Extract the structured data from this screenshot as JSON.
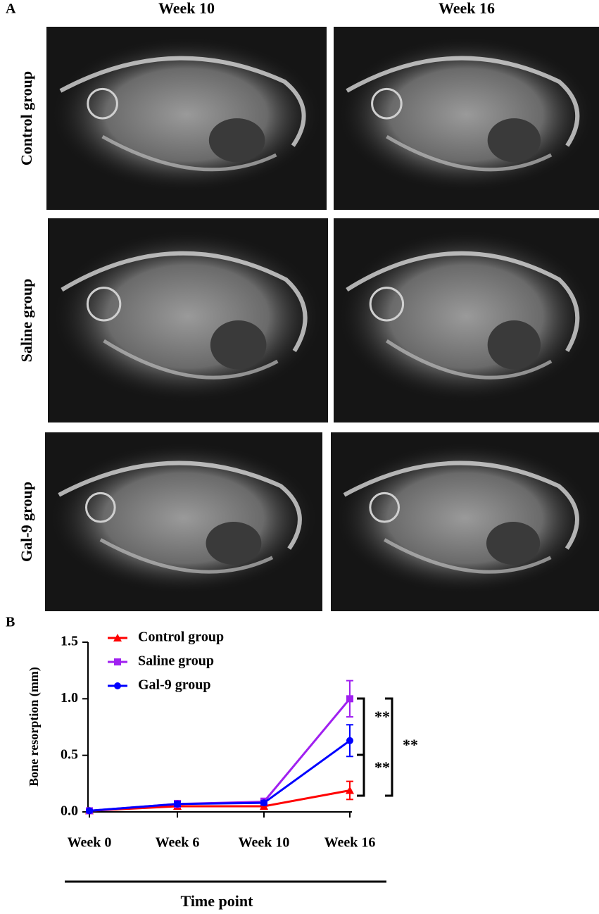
{
  "panel_a": {
    "label": "A",
    "columns": [
      "Week 10",
      "Week 16"
    ],
    "rows": [
      "Control group",
      "Saline group",
      "Gal-9 group"
    ]
  },
  "chart_data": {
    "type": "line",
    "panel_label": "B",
    "x_label": "Time point",
    "y_label": "Bone resorption (mm)",
    "categories": [
      "Week 0",
      "Week 6",
      "Week 10",
      "Week 16"
    ],
    "ylim": [
      0,
      1.5
    ],
    "yticks": [
      {
        "value": 0,
        "label": "0.0"
      },
      {
        "value": 0.5,
        "label": "0.5"
      },
      {
        "value": 1,
        "label": "1.0"
      },
      {
        "value": 1.5,
        "label": "1.5"
      }
    ],
    "series": [
      {
        "name": "Control group",
        "color": "#ff0000",
        "marker": "triangle",
        "values": [
          0.01,
          0.05,
          0.05,
          0.19
        ],
        "errors": [
          0.01,
          0.02,
          0.02,
          0.08
        ]
      },
      {
        "name": "Saline group",
        "color": "#a020f0",
        "marker": "square",
        "values": [
          0.01,
          0.07,
          0.09,
          1.0
        ],
        "errors": [
          0.01,
          0.03,
          0.03,
          0.16
        ]
      },
      {
        "name": "Gal-9 group",
        "color": "#0000ff",
        "marker": "circle",
        "values": [
          0.01,
          0.07,
          0.08,
          0.63
        ],
        "errors": [
          0.01,
          0.02,
          0.02,
          0.14
        ]
      }
    ],
    "annotations": [
      "**",
      "**",
      "**"
    ]
  }
}
